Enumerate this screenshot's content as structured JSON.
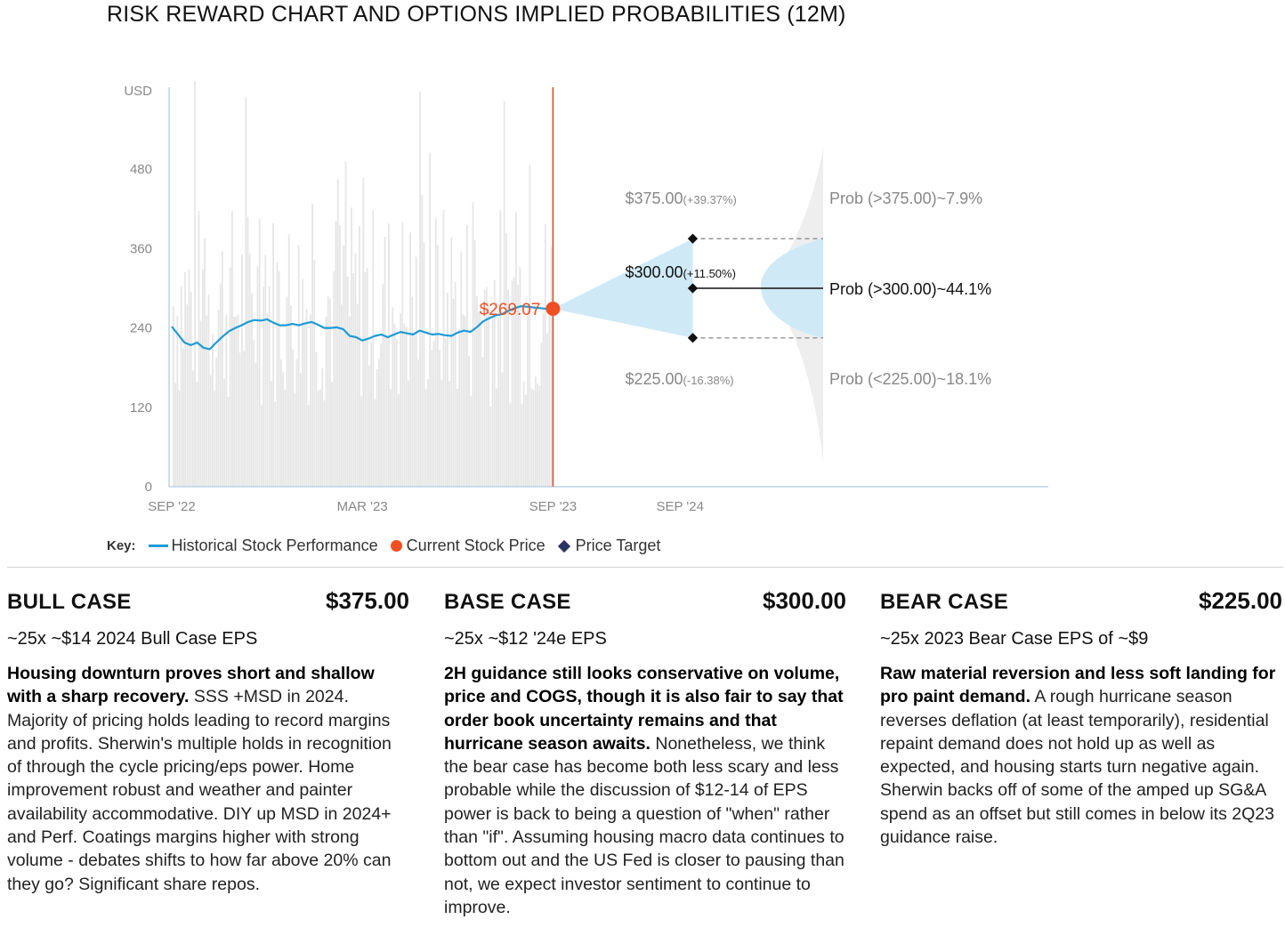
{
  "title": "RISK REWARD CHART AND OPTIONS IMPLIED PROBABILITIES (12M)",
  "chart_data": {
    "type": "line",
    "y_unit": "USD",
    "yticks": [
      "0",
      "120",
      "240",
      "360",
      "480"
    ],
    "ylim": [
      0,
      600
    ],
    "xticks": [
      {
        "label": "SEP '22",
        "t": 0
      },
      {
        "label": "MAR '23",
        "t": 6
      },
      {
        "label": "SEP '23",
        "t": 12
      },
      {
        "label": "SEP '24",
        "t": 16
      }
    ],
    "series": [
      {
        "name": "Historical Stock Performance",
        "color": "#1e9bd7",
        "x_months": [
          0,
          0.2,
          0.4,
          0.6,
          0.8,
          1.0,
          1.2,
          1.4,
          1.6,
          1.8,
          2.0,
          2.2,
          2.4,
          2.6,
          2.8,
          3.0,
          3.2,
          3.4,
          3.6,
          3.8,
          4.0,
          4.2,
          4.4,
          4.6,
          4.8,
          5.0,
          5.2,
          5.4,
          5.6,
          5.8,
          6.0,
          6.2,
          6.4,
          6.6,
          6.8,
          7.0,
          7.2,
          7.4,
          7.6,
          7.8,
          8.0,
          8.2,
          8.4,
          8.6,
          8.8,
          9.0,
          9.2,
          9.4,
          9.6,
          9.8,
          10.0,
          10.2,
          10.4,
          10.6,
          10.8,
          11.0,
          11.2,
          11.4,
          11.6,
          11.8,
          12.0
        ],
        "values": [
          242,
          230,
          218,
          214,
          218,
          210,
          208,
          218,
          227,
          235,
          240,
          244,
          249,
          252,
          251,
          253,
          248,
          244,
          244,
          246,
          244,
          247,
          249,
          245,
          240,
          240,
          241,
          238,
          228,
          226,
          221,
          224,
          228,
          230,
          226,
          230,
          234,
          232,
          230,
          236,
          233,
          230,
          231,
          229,
          228,
          233,
          236,
          234,
          241,
          250,
          255,
          259,
          261,
          266,
          270,
          273,
          272,
          271,
          270,
          269,
          269
        ]
      }
    ],
    "volume_bars_note": "",
    "current_price": {
      "label": "$269.07",
      "value": 269.07,
      "color": "#f04e23"
    },
    "price_targets": [
      {
        "case": "bull",
        "value": 375.0,
        "label_price": "$375.00",
        "label_pct": "(+39.37%)",
        "prob": "Prob (>375.00)~7.9%"
      },
      {
        "case": "base",
        "value": 300.0,
        "label_price": "$300.00",
        "label_pct": "(+11.50%)",
        "prob": "Prob (>300.00)~44.1%"
      },
      {
        "case": "bear",
        "value": 225.0,
        "label_price": "$225.00",
        "label_pct": "(-16.38%)",
        "prob": "Prob (<225.00)~18.1%"
      }
    ],
    "cone_color": "#cfe9f6",
    "current_line_color": "#e0461e"
  },
  "key": {
    "label": "Key:",
    "historical": "Historical Stock Performance",
    "current": "Current Stock Price",
    "target": "Price Target"
  },
  "cases": [
    {
      "name": "BULL CASE",
      "price": "$375.00",
      "sub": "~25x ~$14 2024 Bull Case EPS",
      "lead": "Housing downturn proves short and shallow with a sharp recovery.",
      "body": " SSS +MSD in 2024. Majority of pricing holds leading to record margins and profits. Sherwin's multiple holds in recognition of through the cycle pricing/eps power. Home improvement robust and weather and painter availability accommodative. DIY up MSD in 2024+ and Perf. Coatings margins higher with strong volume - debates shifts to how far above 20% can they go? Significant share repos."
    },
    {
      "name": "BASE CASE",
      "price": "$300.00",
      "sub": "~25x ~$12 '24e EPS",
      "lead": "2H guidance still looks conservative on volume, price and COGS, though it is also fair to say that order book uncertainty remains and that hurricane season awaits.",
      "body": " Nonetheless, we think the bear case has become both less scary and less probable while the discussion of $12-14 of EPS power is back to being a question of \"when\" rather than \"if\". Assuming housing macro data continues to bottom out and the US Fed is closer to pausing than not, we expect investor sentiment to continue to improve."
    },
    {
      "name": "BEAR CASE",
      "price": "$225.00",
      "sub": "~25x 2023 Bear Case EPS of ~$9",
      "lead": "Raw material reversion and less soft landing for pro paint demand.",
      "body": " A rough hurricane season reverses deflation (at least temporarily), residential repaint demand does not hold up as well as expected, and housing starts turn negative again. Sherwin backs off of some of the amped up SG&A spend as an offset but still comes in below its 2Q23 guidance raise."
    }
  ]
}
